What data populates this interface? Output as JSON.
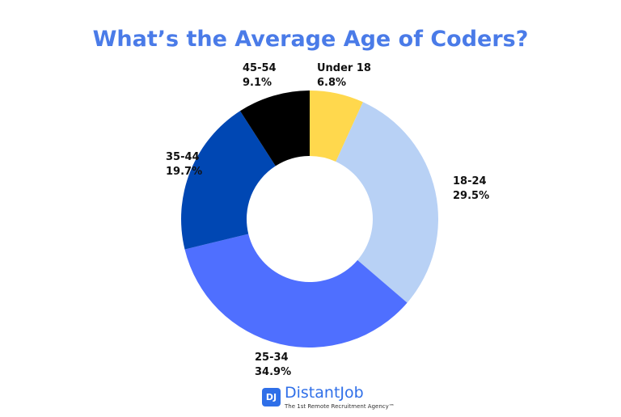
{
  "chart_data": {
    "type": "pie",
    "donut": true,
    "title": "What’s the Average Age of Coders?",
    "categories": [
      "Under 18",
      "18-24",
      "25-34",
      "35-44",
      "45-54"
    ],
    "values": [
      6.8,
      29.5,
      34.9,
      19.7,
      9.1
    ],
    "value_labels": [
      "6.8%",
      "29.5%",
      "34.9%",
      "19.7%",
      "9.1%"
    ],
    "colors": [
      "#ffd84d",
      "#b8d1f5",
      "#4f6fff",
      "#0047b3",
      "#000000"
    ],
    "start": "top",
    "direction": "clockwise"
  },
  "branding": {
    "logo_mark": "DJ",
    "name": "DistantJob",
    "tagline": "The 1st Remote Recruitment Agency™"
  }
}
